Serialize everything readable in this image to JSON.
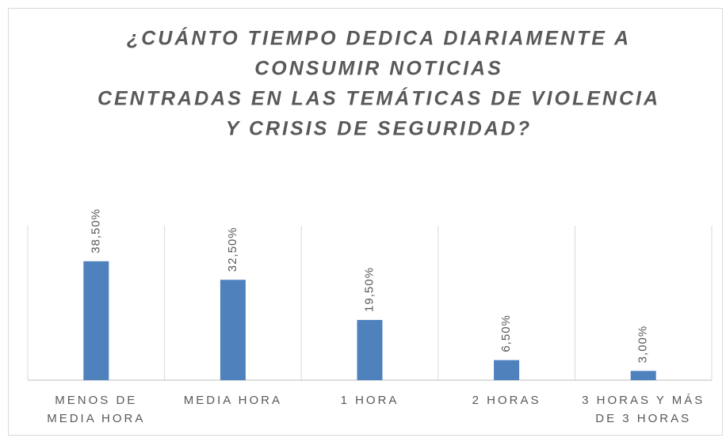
{
  "chart_data": {
    "type": "bar",
    "title": [
      "¿CUÁNTO TIEMPO DEDICA DIARIAMENTE A",
      "CONSUMIR NOTICIAS",
      "CENTRADAS EN LAS TEMÁTICAS DE VIOLENCIA",
      "Y CRISIS DE SEGURIDAD?"
    ],
    "categories": [
      "MENOS DE MEDIA HORA",
      "MEDIA HORA",
      "1 HORA",
      "2 HORAS",
      "3 HORAS Y MÁS DE 3 HORAS"
    ],
    "values": [
      38.5,
      32.5,
      19.5,
      6.5,
      3.0
    ],
    "value_labels": [
      "38,50%",
      "32,50%",
      "19,50%",
      "6,50%",
      "3,00%"
    ],
    "color": "#4f81bd",
    "ylim": [
      0,
      50
    ]
  }
}
